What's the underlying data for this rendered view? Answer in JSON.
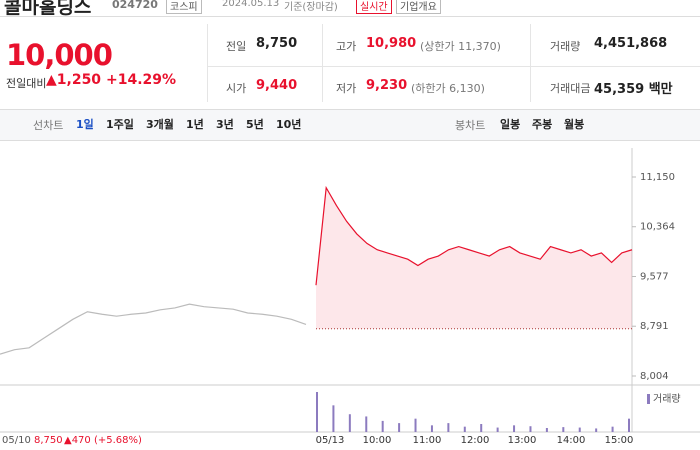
{
  "header": {
    "name": "콜마홀딩스",
    "code": "024720",
    "market": "코스피",
    "date": "2024.05.13",
    "basis": "기준(장마감)",
    "realtime": "실시간",
    "company": "기업개요"
  },
  "price": {
    "current": "10,000",
    "change_label": "전일대비",
    "change": "▲1,250",
    "change_rate": "+14.29%"
  },
  "stats": [
    [
      {
        "label": "전일",
        "value": "8,750",
        "color": "#222222"
      },
      {
        "label": "고가",
        "value": "10,980",
        "note": "(상한가 11,370)",
        "color": "#e8112d"
      },
      {
        "label": "거래량",
        "value": "4,451,868",
        "color": "#222222"
      }
    ],
    [
      {
        "label": "시가",
        "value": "9,440",
        "color": "#e8112d"
      },
      {
        "label": "저가",
        "value": "9,230",
        "note": "(하한가 6,130)",
        "color": "#e8112d"
      },
      {
        "label": "거래대금",
        "value": "45,359 백만",
        "color": "#222222"
      }
    ]
  ],
  "tabs": {
    "line_label": "선차트",
    "periods": [
      "1일",
      "1주일",
      "3개월",
      "1년",
      "3년",
      "5년",
      "10년"
    ],
    "candle_label": "봉차트",
    "candles": [
      "일봉",
      "주봉",
      "월봉"
    ]
  },
  "chart_data": {
    "type": "line",
    "ylim": [
      8004,
      11150
    ],
    "yticks": [
      {
        "value": 8004,
        "label": "8,004"
      },
      {
        "value": 8791,
        "label": "8,791"
      },
      {
        "value": 9577,
        "label": "9,577"
      },
      {
        "value": 10364,
        "label": "10,364"
      },
      {
        "value": 11150,
        "label": "11,150"
      }
    ],
    "series": [
      {
        "color": "#bbbbbb",
        "values": [
          8350,
          8420,
          8450,
          8600,
          8750,
          8900,
          9020,
          8980,
          8950,
          8980,
          9000,
          9050,
          9080,
          9140,
          9100,
          9080,
          9060,
          9000,
          8980,
          8950,
          8900,
          8820
        ]
      },
      {
        "color": "#e8112d",
        "values": [
          9440,
          10980,
          10700,
          10450,
          10250,
          10100,
          10000,
          9950,
          9900,
          9850,
          9750,
          9850,
          9900,
          10000,
          10050,
          10000,
          9950,
          9900,
          10000,
          10050,
          9950,
          9900,
          9850,
          10050,
          10000,
          9950,
          10000,
          9900,
          9950,
          9800,
          9950,
          10000
        ]
      }
    ],
    "prev_day": {
      "date": "05/10",
      "close": {
        "value": 8750,
        "label": "8,750"
      },
      "change": "▲470 (+5.68%)"
    },
    "x_labels": [
      "05/13",
      "10:00",
      "11:00",
      "12:00",
      "13:00",
      "14:00",
      "15:00"
    ],
    "volume_label": "거래량",
    "volume_color": "#8c7bbf",
    "volume": [
      900,
      600,
      400,
      350,
      250,
      200,
      300,
      150,
      200,
      120,
      180,
      100,
      150,
      130,
      90,
      110,
      100,
      80,
      120,
      300
    ]
  }
}
